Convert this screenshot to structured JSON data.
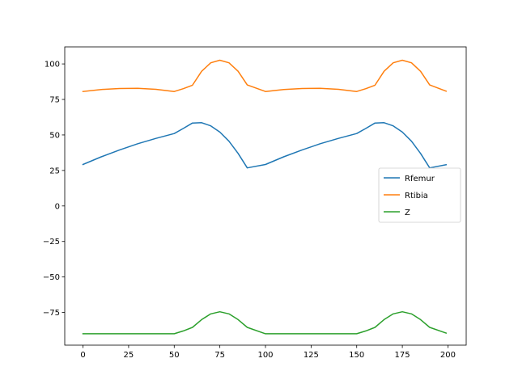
{
  "chart_data": {
    "type": "line",
    "title": "",
    "xlabel": "",
    "ylabel": "",
    "xlim": [
      -10,
      210
    ],
    "ylim": [
      -98,
      112
    ],
    "xticks": [
      0,
      25,
      50,
      75,
      100,
      125,
      150,
      175,
      200
    ],
    "yticks": [
      -75,
      -50,
      -25,
      0,
      25,
      50,
      75,
      100
    ],
    "xtick_labels": [
      "0",
      "25",
      "50",
      "75",
      "100",
      "125",
      "150",
      "175",
      "200"
    ],
    "ytick_labels": [
      "−75",
      "−50",
      "−25",
      "0",
      "25",
      "50",
      "75",
      "100"
    ],
    "grid": false,
    "legend_position": "center-right",
    "x": [
      0,
      10,
      20,
      30,
      40,
      50,
      55,
      60,
      65,
      70,
      75,
      80,
      85,
      90,
      100,
      110,
      120,
      130,
      140,
      150,
      155,
      160,
      165,
      170,
      175,
      180,
      185,
      190,
      199
    ],
    "series": [
      {
        "name": "Rfemur",
        "color": "#1f77b4",
        "values": [
          29.2,
          34.6,
          39.4,
          43.8,
          47.6,
          51.0,
          54.6,
          58.4,
          58.6,
          56.4,
          52.0,
          45.6,
          37.0,
          26.8,
          29.2,
          34.6,
          39.4,
          43.8,
          47.6,
          51.0,
          54.6,
          58.4,
          58.6,
          56.4,
          52.0,
          45.6,
          37.0,
          26.8,
          29.0
        ]
      },
      {
        "name": "Rtibia",
        "color": "#ff7f0e",
        "values": [
          80.6,
          82.0,
          82.7,
          82.8,
          82.1,
          80.6,
          82.6,
          85.0,
          94.8,
          100.8,
          102.6,
          100.8,
          94.8,
          85.2,
          80.6,
          82.0,
          82.7,
          82.8,
          82.1,
          80.6,
          82.6,
          85.0,
          94.8,
          100.8,
          102.6,
          100.8,
          94.8,
          85.2,
          80.8
        ]
      },
      {
        "name": "Z",
        "color": "#2ca02c",
        "values": [
          -90,
          -90,
          -90,
          -90,
          -90,
          -90,
          -88,
          -85.5,
          -80,
          -76,
          -74.5,
          -76,
          -80,
          -85.5,
          -90,
          -90,
          -90,
          -90,
          -90,
          -90,
          -88,
          -85.5,
          -80,
          -76,
          -74.5,
          -76,
          -80,
          -85.5,
          -89.5
        ]
      }
    ]
  }
}
